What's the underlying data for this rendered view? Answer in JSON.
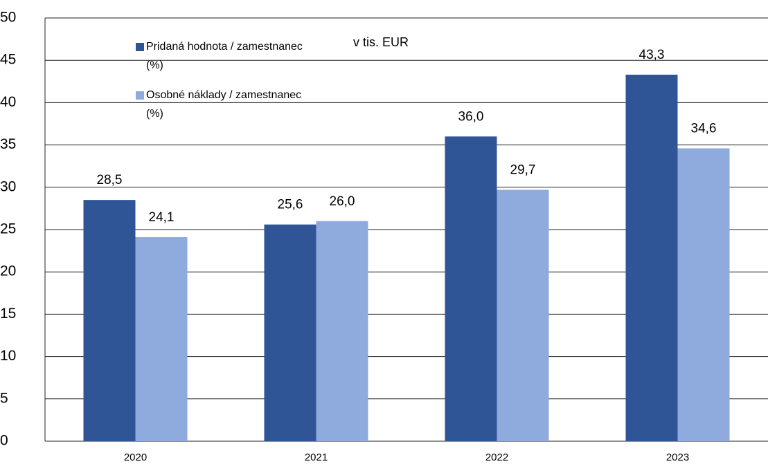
{
  "chart_data": {
    "type": "bar",
    "annotation": "v tis. EUR",
    "categories": [
      "2020",
      "2021",
      "2022",
      "2023"
    ],
    "series": [
      {
        "name": "Pridaná hodnota / zamestnanec (%)",
        "color": "#2f5597",
        "values": [
          28.5,
          25.6,
          36.0,
          43.3
        ],
        "value_labels": [
          "28,5",
          "25,6",
          "36,0",
          "43,3"
        ]
      },
      {
        "name": "Osobné náklady / zamestnanec (%)",
        "color": "#8faadc",
        "values": [
          24.1,
          26.0,
          29.7,
          34.6
        ],
        "value_labels": [
          "24,1",
          "26,0",
          "29,7",
          "34,6"
        ]
      }
    ],
    "ylim": [
      0,
      50
    ],
    "yticks": [
      0,
      5,
      10,
      15,
      20,
      25,
      30,
      35,
      40,
      45,
      50
    ],
    "grid": true,
    "legend": "top-left"
  }
}
